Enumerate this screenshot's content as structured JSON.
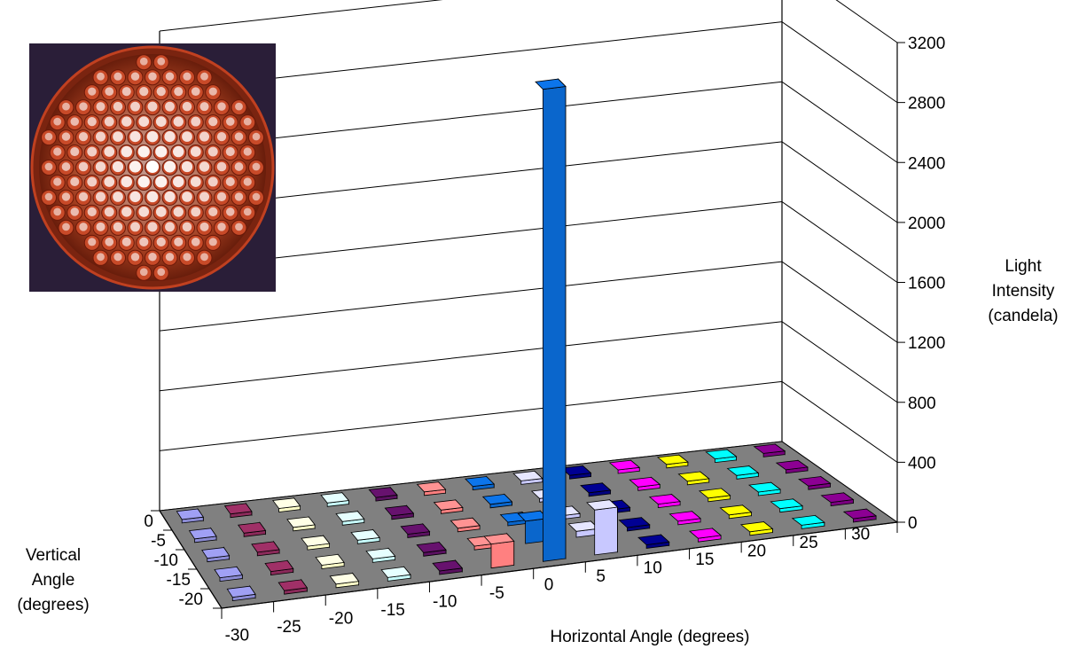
{
  "chart_data": {
    "type": "bar3d",
    "x_axis": {
      "label": "Horizontal Angle (degrees)",
      "ticks": [
        "-30",
        "-25",
        "-20",
        "-15",
        "-10",
        "-5",
        "0",
        "5",
        "10",
        "15",
        "20",
        "25",
        "30"
      ]
    },
    "depth_axis": {
      "label_lines": [
        "Vertical",
        "Angle",
        "(degrees)"
      ],
      "ticks": [
        "0",
        "-5",
        "-10",
        "-15",
        "-20"
      ]
    },
    "z_axis": {
      "label_lines": [
        "Light",
        "Intensity",
        "(candela)"
      ],
      "ticks": [
        "0",
        "400",
        "800",
        "1200",
        "1600",
        "2000",
        "2400",
        "2800",
        "3200"
      ],
      "range": [
        0,
        3200
      ]
    },
    "grid": true,
    "floor_color": "#808080",
    "row_colors": [
      "#8b8bd4",
      "#8b2a5a",
      "#ffffc8",
      "#c8ffff",
      "#5a1060",
      "#ff8080",
      "#0a66cc",
      "#c8c8ff",
      "#000080",
      "#ff00ff",
      "#ffff00",
      "#00ffff",
      "#7a0080"
    ],
    "series": [
      {
        "horizontal": -30,
        "values": [
          0,
          0,
          0,
          0,
          0
        ]
      },
      {
        "horizontal": -25,
        "values": [
          0,
          0,
          0,
          0,
          0
        ]
      },
      {
        "horizontal": -20,
        "values": [
          0,
          0,
          0,
          0,
          0
        ]
      },
      {
        "horizontal": -15,
        "values": [
          0,
          0,
          0,
          0,
          0
        ]
      },
      {
        "horizontal": -10,
        "values": [
          0,
          0,
          0,
          0,
          0
        ]
      },
      {
        "horizontal": -5,
        "values": [
          160,
          25,
          0,
          0,
          0
        ]
      },
      {
        "horizontal": 0,
        "values": [
          3150,
          150,
          0,
          0,
          0
        ]
      },
      {
        "horizontal": 5,
        "values": [
          300,
          40,
          0,
          0,
          0
        ]
      },
      {
        "horizontal": 10,
        "values": [
          0,
          0,
          0,
          0,
          0
        ]
      },
      {
        "horizontal": 15,
        "values": [
          0,
          0,
          0,
          0,
          0
        ]
      },
      {
        "horizontal": 20,
        "values": [
          0,
          0,
          0,
          0,
          0
        ]
      },
      {
        "horizontal": 25,
        "values": [
          0,
          0,
          0,
          0,
          0
        ]
      },
      {
        "horizontal": 30,
        "values": [
          0,
          0,
          0,
          0,
          0
        ]
      }
    ]
  }
}
